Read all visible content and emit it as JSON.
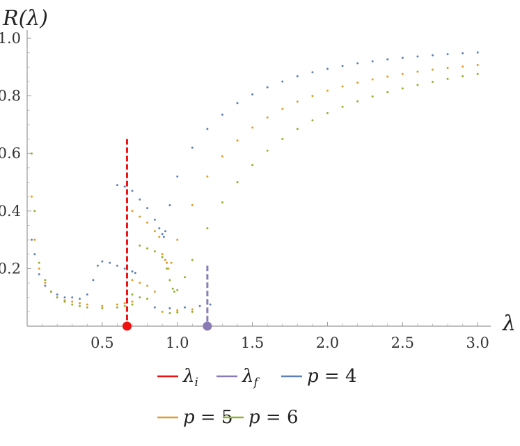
{
  "chart_data": {
    "type": "scatter",
    "title": "",
    "ylabel": "R(λ)",
    "xlabel": "λ",
    "xlim": [
      0.0,
      3.05
    ],
    "ylim": [
      0.0,
      1.0
    ],
    "x_ticks": [
      {
        "value": 0.5,
        "label": "0.5"
      },
      {
        "value": 1.0,
        "label": "1.0"
      },
      {
        "value": 1.5,
        "label": "1.5"
      },
      {
        "value": 2.0,
        "label": "2.0"
      },
      {
        "value": 2.5,
        "label": "2.5"
      },
      {
        "value": 3.0,
        "label": "3.0"
      }
    ],
    "y_ticks": [
      {
        "value": 0.2,
        "label": "0.2"
      },
      {
        "value": 0.4,
        "label": "0.4"
      },
      {
        "value": 0.6,
        "label": "0.6"
      },
      {
        "value": 0.8,
        "label": "0.8"
      },
      {
        "value": 1.0,
        "label": "1.0"
      }
    ],
    "grid": false,
    "legend_position": "bottom",
    "markers": [
      {
        "name": "λ_i",
        "x": 0.665,
        "y_top": 0.65,
        "color": "#ee1111",
        "style": "dashed"
      },
      {
        "name": "λ_f",
        "x": 1.2,
        "y_top": 0.21,
        "color": "#8a7bb6",
        "style": "dashed"
      }
    ],
    "series": [
      {
        "name": "p = 4",
        "color": "#5e81b5",
        "points": [
          [
            0.03,
            0.3
          ],
          [
            0.05,
            0.25
          ],
          [
            0.08,
            0.18
          ],
          [
            0.12,
            0.14
          ],
          [
            0.16,
            0.12
          ],
          [
            0.2,
            0.11
          ],
          [
            0.25,
            0.1
          ],
          [
            0.3,
            0.1
          ],
          [
            0.35,
            0.095
          ],
          [
            0.4,
            0.11
          ],
          [
            0.44,
            0.16
          ],
          [
            0.47,
            0.21
          ],
          [
            0.5,
            0.225
          ],
          [
            0.55,
            0.22
          ],
          [
            0.6,
            0.21
          ],
          [
            0.65,
            0.2
          ],
          [
            0.7,
            0.19
          ],
          [
            0.72,
            0.185
          ],
          [
            0.6,
            0.49
          ],
          [
            0.65,
            0.485
          ],
          [
            0.7,
            0.47
          ],
          [
            0.75,
            0.44
          ],
          [
            0.8,
            0.41
          ],
          [
            0.85,
            0.37
          ],
          [
            0.88,
            0.34
          ],
          [
            0.9,
            0.32
          ],
          [
            0.91,
            0.31
          ],
          [
            0.92,
            0.33
          ],
          [
            0.95,
            0.42
          ],
          [
            1.0,
            0.52
          ],
          [
            1.1,
            0.62
          ],
          [
            1.2,
            0.685
          ],
          [
            1.3,
            0.735
          ],
          [
            1.4,
            0.775
          ],
          [
            1.5,
            0.805
          ],
          [
            1.6,
            0.83
          ],
          [
            1.7,
            0.85
          ],
          [
            1.8,
            0.868
          ],
          [
            1.9,
            0.882
          ],
          [
            2.0,
            0.894
          ],
          [
            2.1,
            0.904
          ],
          [
            2.2,
            0.913
          ],
          [
            2.3,
            0.92
          ],
          [
            2.4,
            0.927
          ],
          [
            2.5,
            0.932
          ],
          [
            2.6,
            0.937
          ],
          [
            2.7,
            0.941
          ],
          [
            2.8,
            0.945
          ],
          [
            2.9,
            0.948
          ],
          [
            3.0,
            0.951
          ],
          [
            0.85,
            0.065
          ],
          [
            0.95,
            0.062
          ],
          [
            1.05,
            0.065
          ],
          [
            1.15,
            0.07
          ],
          [
            1.22,
            0.075
          ]
        ]
      },
      {
        "name": "p = 5",
        "color": "#e19c24",
        "points": [
          [
            0.03,
            0.45
          ],
          [
            0.05,
            0.3
          ],
          [
            0.08,
            0.2
          ],
          [
            0.12,
            0.15
          ],
          [
            0.16,
            0.12
          ],
          [
            0.2,
            0.1
          ],
          [
            0.25,
            0.09
          ],
          [
            0.3,
            0.085
          ],
          [
            0.35,
            0.08
          ],
          [
            0.4,
            0.075
          ],
          [
            0.5,
            0.07
          ],
          [
            0.6,
            0.075
          ],
          [
            0.65,
            0.08
          ],
          [
            0.7,
            0.085
          ],
          [
            0.7,
            0.4
          ],
          [
            0.75,
            0.38
          ],
          [
            0.8,
            0.36
          ],
          [
            0.85,
            0.33
          ],
          [
            0.88,
            0.31
          ],
          [
            0.7,
            0.16
          ],
          [
            0.75,
            0.15
          ],
          [
            0.8,
            0.14
          ],
          [
            0.85,
            0.12
          ],
          [
            0.9,
            0.25
          ],
          [
            0.92,
            0.23
          ],
          [
            0.93,
            0.22
          ],
          [
            0.94,
            0.2
          ],
          [
            0.96,
            0.22
          ],
          [
            1.0,
            0.3
          ],
          [
            1.1,
            0.42
          ],
          [
            1.2,
            0.52
          ],
          [
            1.3,
            0.59
          ],
          [
            1.4,
            0.645
          ],
          [
            1.5,
            0.69
          ],
          [
            1.6,
            0.725
          ],
          [
            1.7,
            0.755
          ],
          [
            1.8,
            0.78
          ],
          [
            1.9,
            0.8
          ],
          [
            2.0,
            0.818
          ],
          [
            2.1,
            0.833
          ],
          [
            2.2,
            0.846
          ],
          [
            2.3,
            0.857
          ],
          [
            2.4,
            0.867
          ],
          [
            2.5,
            0.876
          ],
          [
            2.6,
            0.884
          ],
          [
            2.7,
            0.891
          ],
          [
            2.8,
            0.897
          ],
          [
            2.9,
            0.902
          ],
          [
            3.0,
            0.907
          ],
          [
            0.9,
            0.05
          ],
          [
            1.0,
            0.055
          ],
          [
            1.1,
            0.058
          ]
        ]
      },
      {
        "name": "p = 6",
        "color": "#8fb131",
        "points": [
          [
            0.03,
            0.6
          ],
          [
            0.05,
            0.4
          ],
          [
            0.08,
            0.22
          ],
          [
            0.12,
            0.16
          ],
          [
            0.16,
            0.12
          ],
          [
            0.2,
            0.1
          ],
          [
            0.25,
            0.085
          ],
          [
            0.3,
            0.075
          ],
          [
            0.35,
            0.07
          ],
          [
            0.4,
            0.065
          ],
          [
            0.5,
            0.062
          ],
          [
            0.6,
            0.065
          ],
          [
            0.65,
            0.07
          ],
          [
            0.7,
            0.075
          ],
          [
            0.75,
            0.28
          ],
          [
            0.8,
            0.27
          ],
          [
            0.85,
            0.26
          ],
          [
            0.9,
            0.24
          ],
          [
            0.7,
            0.11
          ],
          [
            0.75,
            0.1
          ],
          [
            0.8,
            0.095
          ],
          [
            0.93,
            0.2
          ],
          [
            0.95,
            0.16
          ],
          [
            0.97,
            0.13
          ],
          [
            0.98,
            0.12
          ],
          [
            1.0,
            0.125
          ],
          [
            1.05,
            0.17
          ],
          [
            1.1,
            0.23
          ],
          [
            1.2,
            0.34
          ],
          [
            1.3,
            0.43
          ],
          [
            1.4,
            0.5
          ],
          [
            1.5,
            0.56
          ],
          [
            1.6,
            0.61
          ],
          [
            1.7,
            0.65
          ],
          [
            1.8,
            0.685
          ],
          [
            1.9,
            0.715
          ],
          [
            2.0,
            0.74
          ],
          [
            2.1,
            0.762
          ],
          [
            2.2,
            0.781
          ],
          [
            2.3,
            0.798
          ],
          [
            2.4,
            0.813
          ],
          [
            2.5,
            0.826
          ],
          [
            2.6,
            0.838
          ],
          [
            2.7,
            0.849
          ],
          [
            2.8,
            0.859
          ],
          [
            2.9,
            0.868
          ],
          [
            3.0,
            0.876
          ],
          [
            0.95,
            0.045
          ],
          [
            1.0,
            0.048
          ],
          [
            1.1,
            0.05
          ]
        ]
      }
    ]
  },
  "legend": {
    "items": [
      {
        "color": "#ee1111",
        "symbol": "λ",
        "sub": "i",
        "eq": ""
      },
      {
        "color": "#8a7bb6",
        "symbol": "λ",
        "sub": "f",
        "eq": ""
      },
      {
        "color": "#5e81b5",
        "symbol": "p",
        "sub": "",
        "eq": " = 4"
      },
      {
        "color": "#e19c24",
        "symbol": "p",
        "sub": "",
        "eq": " = 5"
      },
      {
        "color": "#8fb131",
        "symbol": "p",
        "sub": "",
        "eq": " = 6"
      }
    ]
  }
}
